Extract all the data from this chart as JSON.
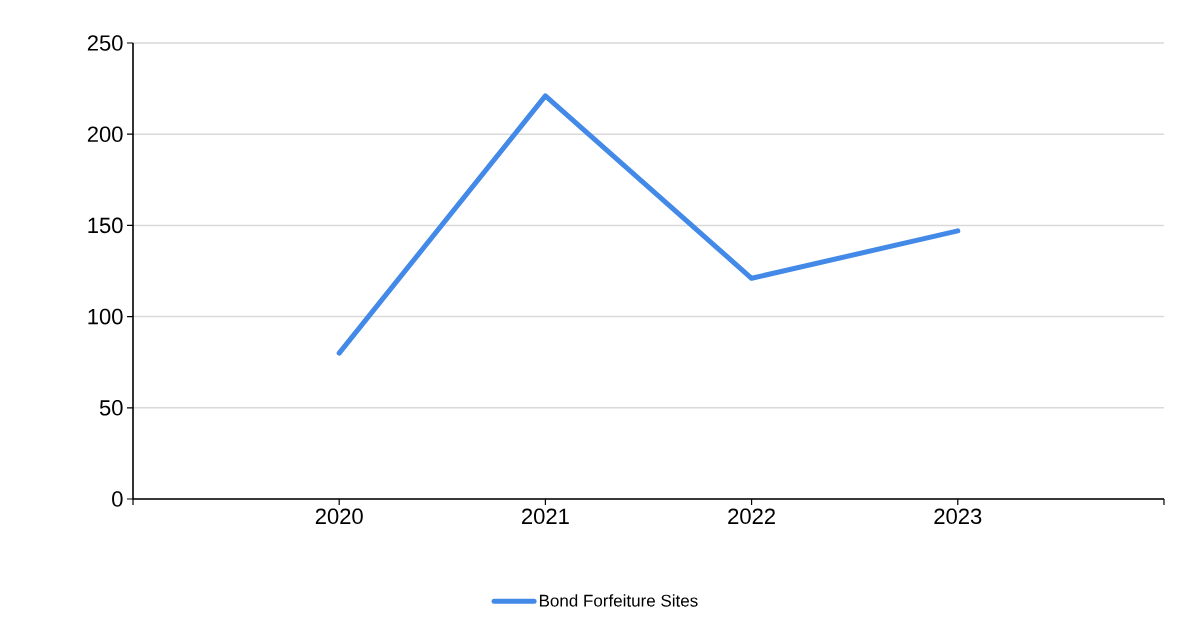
{
  "chart_data": {
    "type": "line",
    "categories": [
      "2020",
      "2021",
      "2022",
      "2023"
    ],
    "series": [
      {
        "name": "Bond Forfeiture Sites",
        "color": "#4389e8",
        "values": [
          80,
          221,
          121,
          147
        ]
      }
    ],
    "ylim": [
      0,
      250
    ],
    "yticks": [
      0,
      50,
      100,
      150,
      200,
      250
    ],
    "grid": "y",
    "legend": "bottom",
    "marker": "none",
    "line_style": "solid"
  }
}
